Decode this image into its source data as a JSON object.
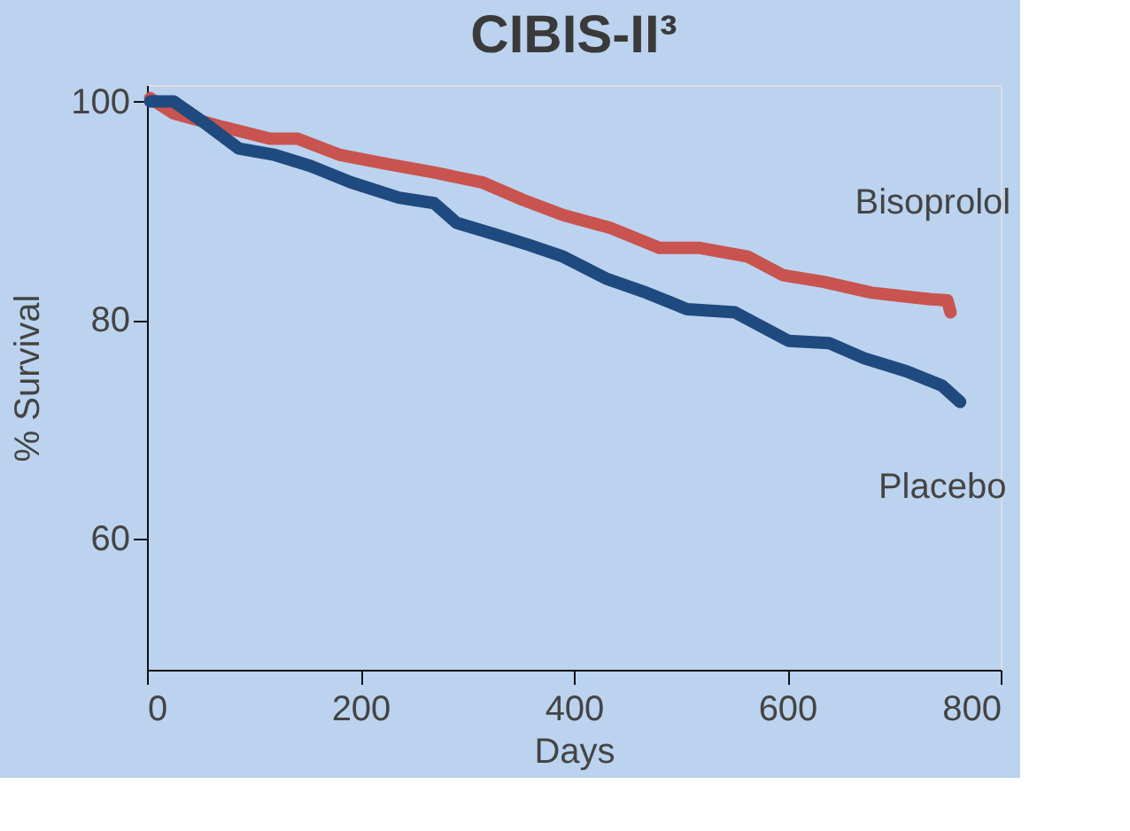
{
  "chart_data": {
    "type": "line",
    "title": "CIBIS-II³",
    "xlabel": "Days",
    "ylabel": "% Survival",
    "xlim": [
      0,
      800
    ],
    "xticks": [
      0,
      200,
      400,
      600,
      800
    ],
    "ylim": [
      48,
      101.5
    ],
    "yticks": [
      60,
      80,
      100
    ],
    "grid": false,
    "legend": false,
    "marker": "none",
    "line_style": "solid",
    "series": [
      {
        "name": "Bisoprolol",
        "color": "#c9534f",
        "x": [
          3,
          25,
          70,
          115,
          141,
          181,
          224,
          269,
          314,
          352,
          390,
          435,
          480,
          518,
          563,
          596,
          634,
          679,
          734,
          750,
          753
        ],
        "values": [
          100.3,
          98.9,
          97.7,
          96.6,
          96.6,
          95.1,
          94.3,
          93.5,
          92.6,
          91.0,
          89.6,
          88.4,
          86.6,
          86.6,
          85.8,
          84.1,
          83.5,
          82.5,
          81.9,
          81.8,
          80.7
        ]
      },
      {
        "name": "Placebo",
        "color": "#1f4a7f",
        "x": [
          3,
          25,
          53,
          86,
          120,
          153,
          191,
          236,
          269,
          290,
          324,
          357,
          390,
          430,
          468,
          506,
          551,
          601,
          639,
          672,
          712,
          745,
          762
        ],
        "values": [
          100,
          100,
          98.1,
          95.7,
          95.1,
          94.1,
          92.6,
          91.2,
          90.7,
          88.9,
          87.9,
          86.9,
          85.8,
          83.8,
          82.5,
          81.0,
          80.7,
          78.1,
          77.9,
          76.5,
          75.3,
          74.0,
          72.5
        ]
      }
    ]
  }
}
